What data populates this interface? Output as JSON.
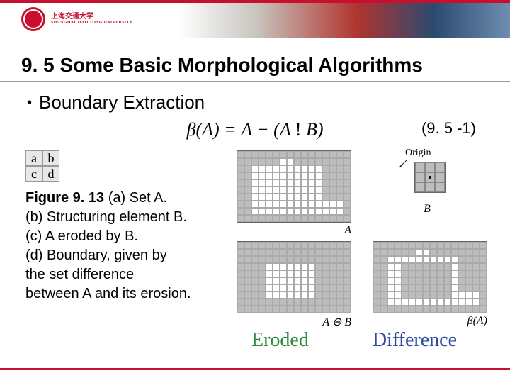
{
  "university": {
    "name_cn": "上海交通大学",
    "name_en": "SHANGHAI JIAO TONG UNIVERSITY"
  },
  "title": "9. 5 Some Basic Morphological Algorithms",
  "bullet": "Boundary Extraction",
  "equation": "β(A) = A − (A ! B)",
  "eqnum": "(9. 5 -1)",
  "mini": {
    "a": "a",
    "b": "b",
    "c": "c",
    "d": "d"
  },
  "caption": {
    "figlabel": "Figure 9. 13",
    "a": " (a) Set A.",
    "b": "(b) Structuring element B.",
    "c": "(c) A eroded by B.",
    "d": "(d) Boundary, given by",
    "e": "the set difference",
    "f": "between A and its erosion."
  },
  "panels": {
    "A_label": "A",
    "B_label": "B",
    "C_label": "A ⊖ B",
    "D_label": "β(A)",
    "origin": "Origin"
  },
  "biglabels": {
    "eroded": "Eroded",
    "difference": "Difference"
  },
  "colors": {
    "accent": "#c8102e",
    "grid_fill": "#bdbdbd",
    "grid_on": "#ffffff",
    "eroded_color": "#2e8b3e",
    "difference_color": "#2e4b9e"
  },
  "gridA": [
    "0000000000000000",
    "0000001100000000",
    "0011111111110000",
    "0011111111110000",
    "0011111111110000",
    "0011111111110000",
    "0011111111110000",
    "0011111111111110",
    "0011111111111110",
    "0000000000000000"
  ],
  "gridC": [
    "0000000000000000",
    "0000000000000000",
    "0000000000000000",
    "0000111111100000",
    "0000111111100000",
    "0000111111100000",
    "0000111111100000",
    "0000111111100000",
    "0000000000000000",
    "0000000000000000"
  ],
  "gridD": [
    "0000000000000000",
    "0000001100000000",
    "0011111111110000",
    "0011000000010000",
    "0011000000010000",
    "0011000000010000",
    "0011000000010000",
    "0011000000011110",
    "0011111111111110",
    "0000000000000000"
  ]
}
